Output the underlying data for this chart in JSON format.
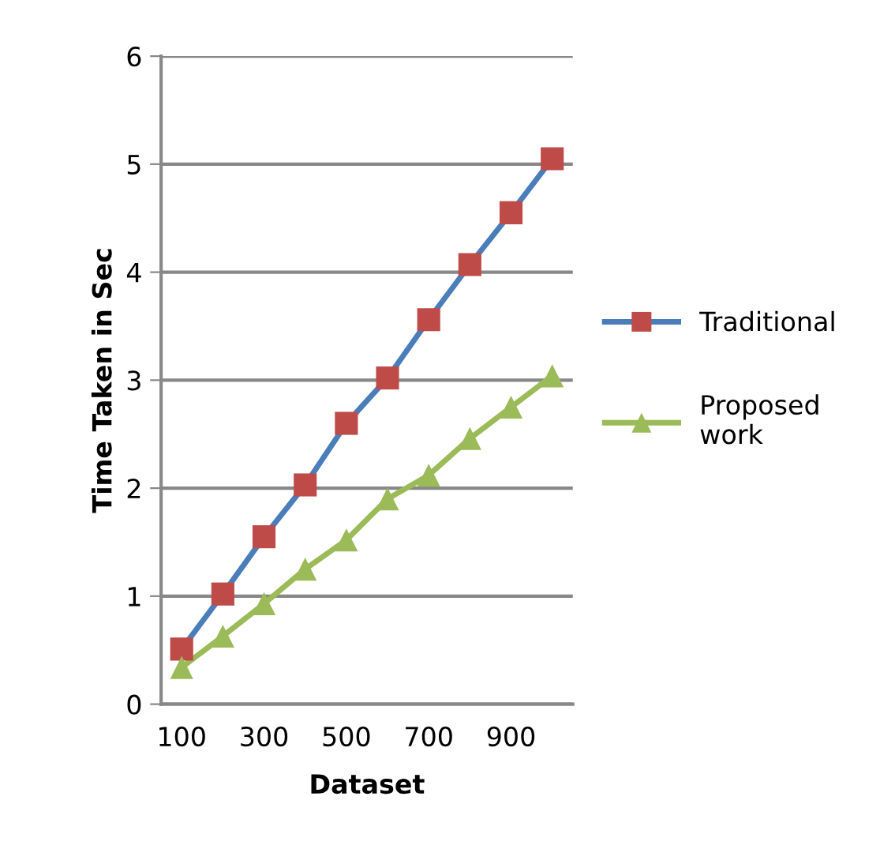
{
  "chart_data": {
    "type": "line",
    "xlabel": "Dataset",
    "ylabel": "Time Taken in Sec",
    "categories": [
      "100",
      null,
      "300",
      null,
      "500",
      null,
      "700",
      null,
      "900",
      null
    ],
    "series": [
      {
        "name": "Traditional",
        "color": "#4a7ebb",
        "colors": [
          "#be4b48",
          "#be4b48",
          "#be4b48",
          "#be4b48",
          "#be4b48",
          "#be4b48",
          "#be4b48",
          "#be4b48",
          "#be4b48",
          "#be4b48"
        ],
        "marker": "square",
        "values": [
          0.51,
          1.02,
          1.55,
          2.03,
          2.6,
          3.02,
          3.56,
          4.07,
          4.55,
          5.05
        ]
      },
      {
        "name": "Proposed work",
        "color": "#9bbb59",
        "marker": "triangle",
        "values": [
          0.34,
          0.63,
          0.93,
          1.25,
          1.52,
          1.9,
          2.12,
          2.46,
          2.75,
          3.04
        ]
      }
    ],
    "ylim": [
      0,
      6
    ],
    "yticks": [
      0,
      1,
      2,
      3,
      4,
      5,
      6
    ],
    "grid": "y",
    "legend": "right",
    "line_style": "solid"
  }
}
